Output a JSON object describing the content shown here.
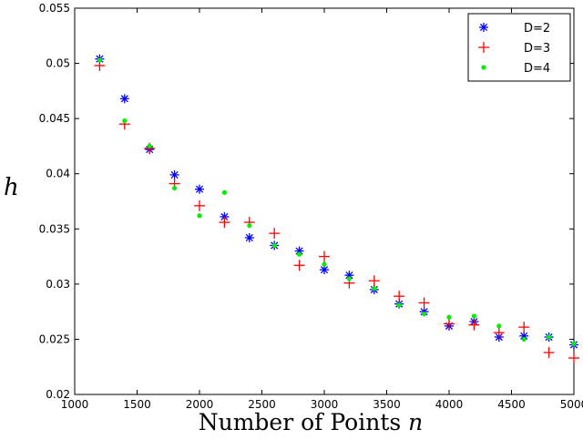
{
  "chart_data": {
    "type": "scatter",
    "xlabel": "Number of Points ",
    "xlabel_var": "n",
    "ylabel": "h",
    "xlim": [
      1000,
      5000
    ],
    "ylim": [
      0.02,
      0.055
    ],
    "xticks": [
      1000,
      1500,
      2000,
      2500,
      3000,
      3500,
      4000,
      4500,
      5000
    ],
    "yticks": [
      "0.02",
      "0.025",
      "0.03",
      "0.035",
      "0.04",
      "0.045",
      "0.05",
      "0.055"
    ],
    "grid": false,
    "legend_position": "top-right",
    "series": [
      {
        "name": "D=2",
        "marker": "asterisk",
        "color": "#0000ff",
        "x": [
          1200,
          1400,
          1600,
          1800,
          2000,
          2200,
          2400,
          2600,
          2800,
          3000,
          3200,
          3400,
          3600,
          3800,
          4000,
          4200,
          4400,
          4600,
          4800,
          5000
        ],
        "y": [
          0.0504,
          0.0468,
          0.0422,
          0.0399,
          0.0386,
          0.0361,
          0.0342,
          0.0335,
          0.033,
          0.0313,
          0.0308,
          0.0295,
          0.0282,
          0.0275,
          0.0262,
          0.0266,
          0.0252,
          0.0253,
          0.0252,
          0.0245
        ]
      },
      {
        "name": "D=3",
        "marker": "plus",
        "color": "#ff0000",
        "x": [
          1200,
          1400,
          1600,
          1800,
          2000,
          2200,
          2400,
          2600,
          2800,
          3000,
          3200,
          3400,
          3600,
          3800,
          4000,
          4200,
          4400,
          4600,
          4800,
          5000
        ],
        "y": [
          0.0498,
          0.0445,
          0.0423,
          0.0391,
          0.0371,
          0.0356,
          0.0356,
          0.0346,
          0.0317,
          0.0325,
          0.0301,
          0.0303,
          0.0289,
          0.0283,
          0.0264,
          0.0263,
          0.0256,
          0.0261,
          0.0238,
          0.0233
        ]
      },
      {
        "name": "D=4",
        "marker": "dot",
        "color": "#00ee00",
        "x": [
          1200,
          1400,
          1600,
          1800,
          2000,
          2200,
          2400,
          2600,
          2800,
          3000,
          3200,
          3400,
          3600,
          3800,
          4000,
          4200,
          4400,
          4600,
          4800,
          5000
        ],
        "y": [
          0.0503,
          0.0448,
          0.0425,
          0.0387,
          0.0362,
          0.0383,
          0.0353,
          0.0335,
          0.0327,
          0.0318,
          0.0305,
          0.0296,
          0.0281,
          0.0273,
          0.027,
          0.0271,
          0.0262,
          0.025,
          0.0252,
          0.0246
        ]
      }
    ]
  }
}
